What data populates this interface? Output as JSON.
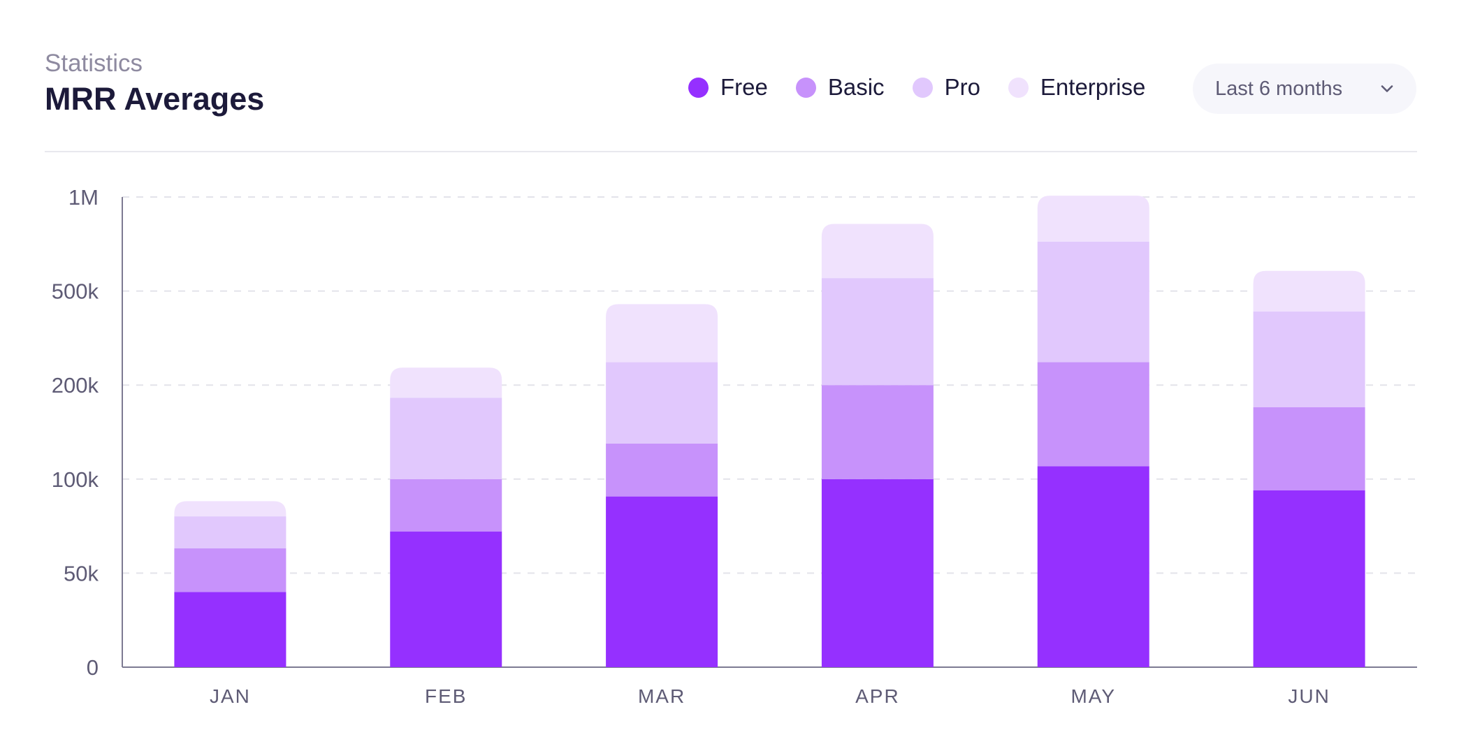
{
  "header": {
    "subtitle": "Statistics",
    "title": "MRR Averages"
  },
  "legend": [
    {
      "label": "Free",
      "color": "#9530ff"
    },
    {
      "label": "Basic",
      "color": "#c792fb"
    },
    {
      "label": "Pro",
      "color": "#e1c8fd"
    },
    {
      "label": "Enterprise",
      "color": "#f0e2fd"
    }
  ],
  "dropdown": {
    "selected": "Last 6 months",
    "icon": "chevron-down-icon"
  },
  "chart_data": {
    "type": "bar",
    "stacked": true,
    "y_scale": "log",
    "categories": [
      "JAN",
      "FEB",
      "MAR",
      "APR",
      "MAY",
      "JUN"
    ],
    "y_ticks": [
      {
        "value": 0,
        "label": "0"
      },
      {
        "value": 50000,
        "label": "50k"
      },
      {
        "value": 100000,
        "label": "100k"
      },
      {
        "value": 200000,
        "label": "200k"
      },
      {
        "value": 500000,
        "label": "500k"
      },
      {
        "value": 1000000,
        "label": "1M"
      }
    ],
    "series": [
      {
        "name": "Free",
        "color": "#9530ff",
        "values": [
          40000,
          68000,
          88000,
          100000,
          110000,
          92000
        ]
      },
      {
        "name": "Basic",
        "color": "#c792fb",
        "values": [
          20000,
          32000,
          42000,
          100000,
          140000,
          78000
        ]
      },
      {
        "name": "Pro",
        "color": "#e1c8fd",
        "values": [
          16000,
          82000,
          120000,
          350000,
          470000,
          240000
        ]
      },
      {
        "name": "Enterprise",
        "color": "#f0e2fd",
        "values": [
          9000,
          55000,
          190000,
          270000,
          290000,
          170000
        ]
      }
    ],
    "grid": true,
    "legend_position": "top-right"
  }
}
